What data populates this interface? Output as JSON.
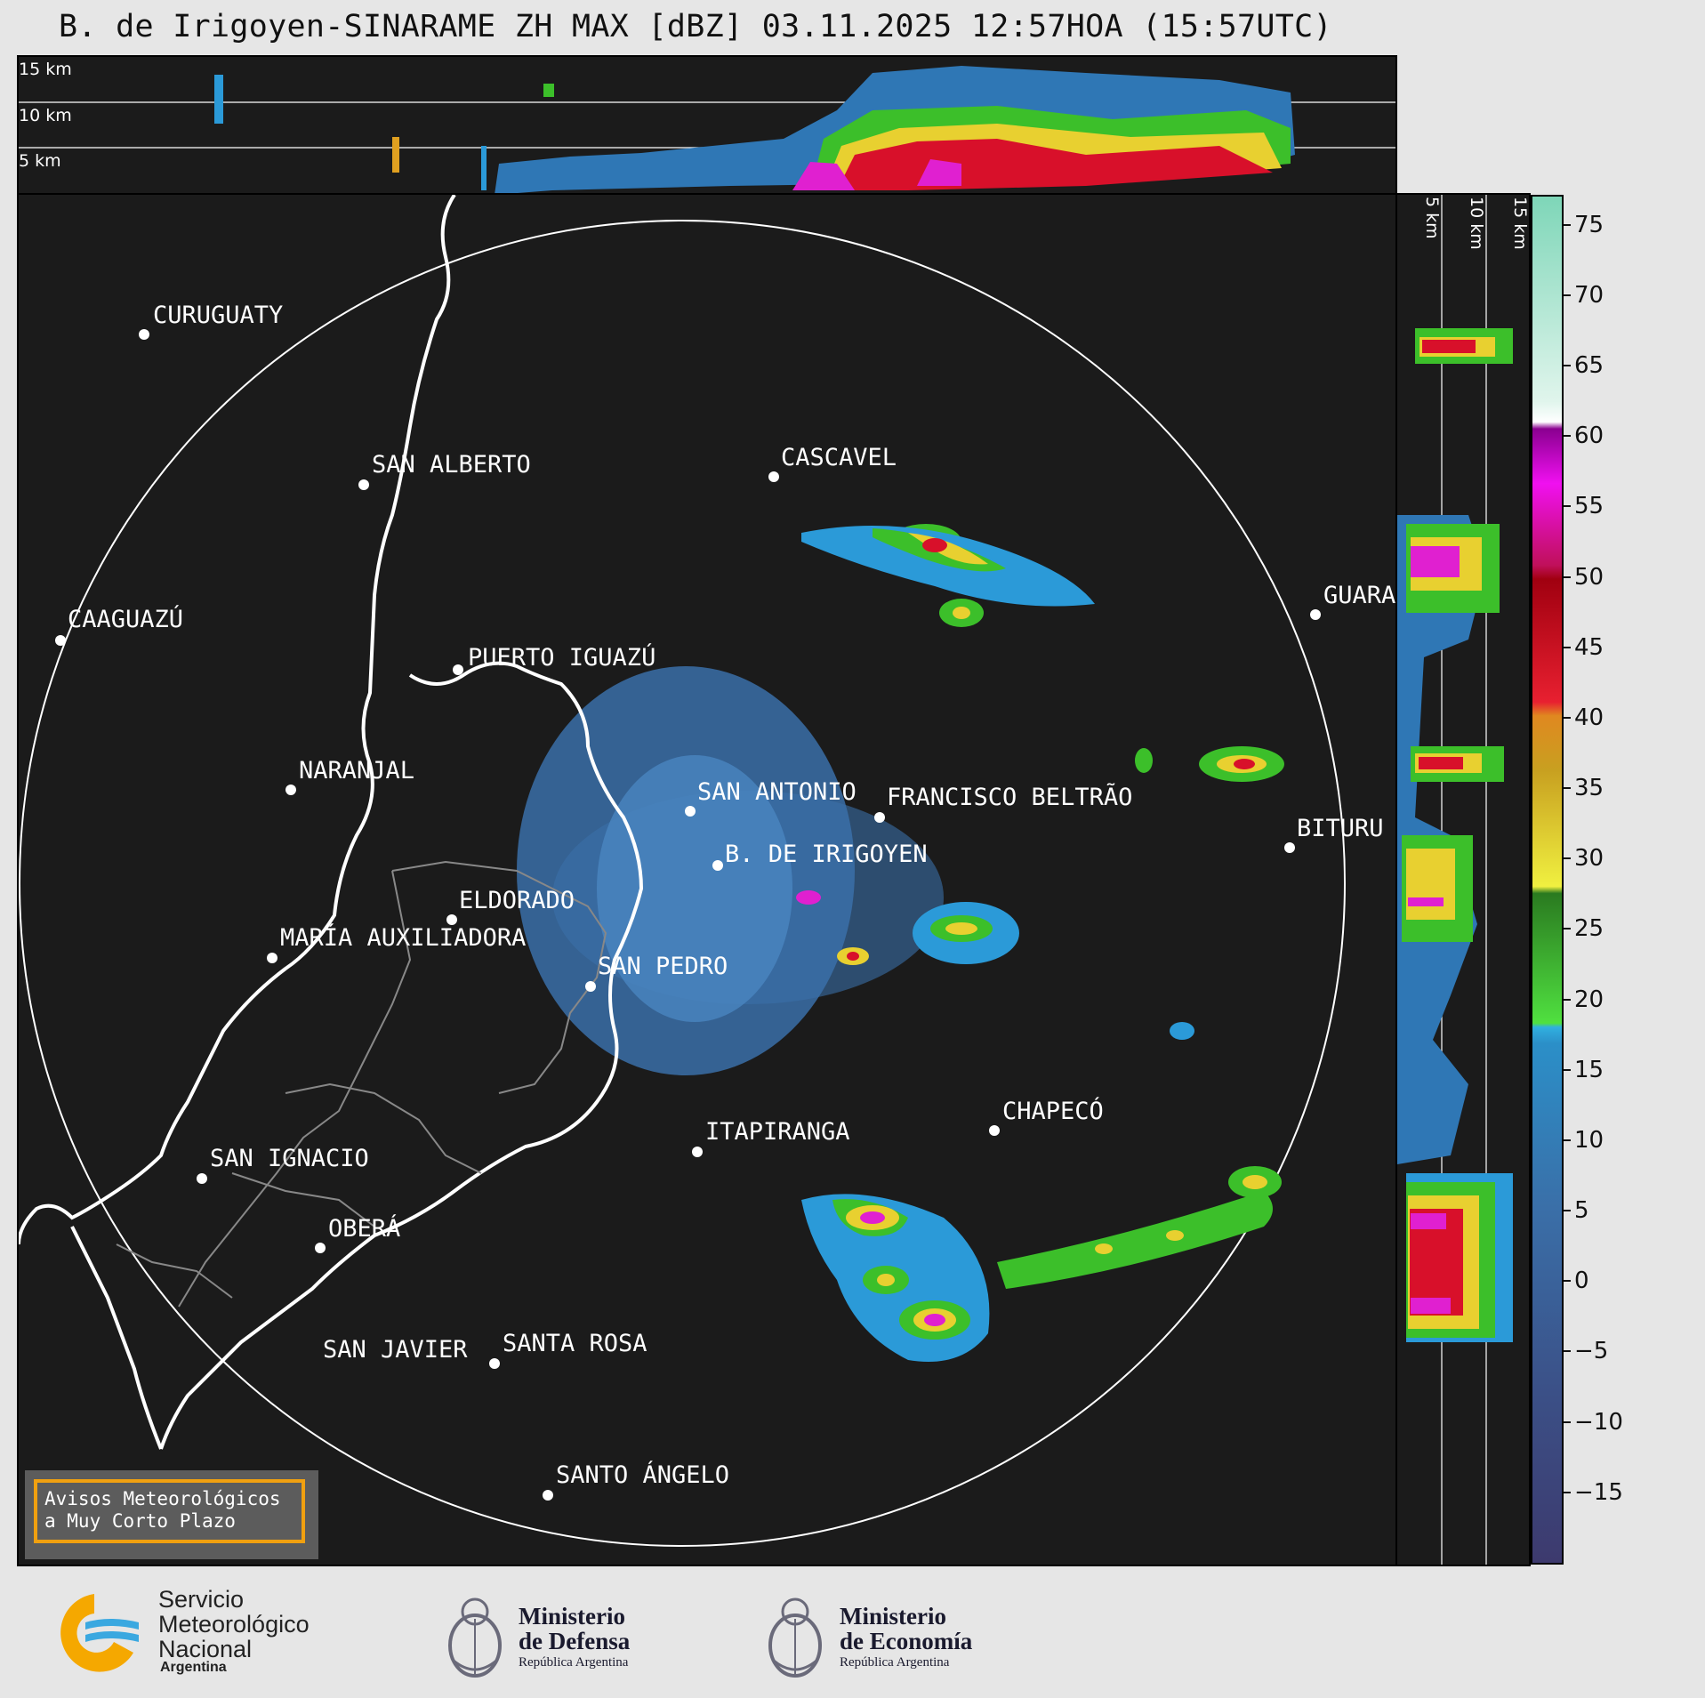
{
  "title": "B. de Irigoyen-SINARAME ZH MAX [dBZ] 03.11.2025 12:57HOA (15:57UTC)",
  "height_labels": [
    "15 km",
    "10 km",
    "5 km"
  ],
  "side_height_labels": [
    "5 km",
    "10 km",
    "15 km"
  ],
  "colorbar": {
    "labels": [
      "75",
      "70",
      "65",
      "60",
      "55",
      "50",
      "45",
      "40",
      "35",
      "30",
      "25",
      "20",
      "15",
      "10",
      "5",
      "0",
      "−5",
      "−10",
      "−15"
    ],
    "min": -20,
    "max": 77
  },
  "cities": [
    {
      "name": "CURUGUATY"
    },
    {
      "name": "SAN ALBERTO"
    },
    {
      "name": "CASCAVEL"
    },
    {
      "name": "CAAGUAZÚ"
    },
    {
      "name": "GUARA"
    },
    {
      "name": "PUERTO IGUAZÚ"
    },
    {
      "name": "NARANJAL"
    },
    {
      "name": "SAN ANTONIO"
    },
    {
      "name": "FRANCISCO BELTRÃO"
    },
    {
      "name": "BITURU"
    },
    {
      "name": "B. DE IRIGOYEN"
    },
    {
      "name": "ELDORADO"
    },
    {
      "name": "MARÍA AUXILIADORA"
    },
    {
      "name": "SAN PEDRO"
    },
    {
      "name": "CHAPECÓ"
    },
    {
      "name": "ITAPIRANGA"
    },
    {
      "name": "SAN IGNACIO"
    },
    {
      "name": "OBERÁ"
    },
    {
      "name": "SAN JAVIER"
    },
    {
      "name": "SANTA ROSA"
    },
    {
      "name": "SANTO ÁNGELO"
    }
  ],
  "warning_box": {
    "line1": "Avisos Meteorológicos",
    "line2": "a Muy Corto Plazo"
  },
  "logos": {
    "smn": {
      "line1": "Servicio",
      "line2": "Meteorológico",
      "line3": "Nacional",
      "line4": "Argentina"
    },
    "defensa": {
      "line1": "Ministerio",
      "line2": "de Defensa",
      "line3": "República Argentina"
    },
    "economia": {
      "line1": "Ministerio",
      "line2": "de Economía",
      "line3": "República Argentina"
    }
  },
  "colors": {
    "background": "#1b1b1b",
    "warning_border": "#f0a010",
    "smn_yellow": "#f5a800",
    "smn_blue": "#3aa8e0"
  }
}
